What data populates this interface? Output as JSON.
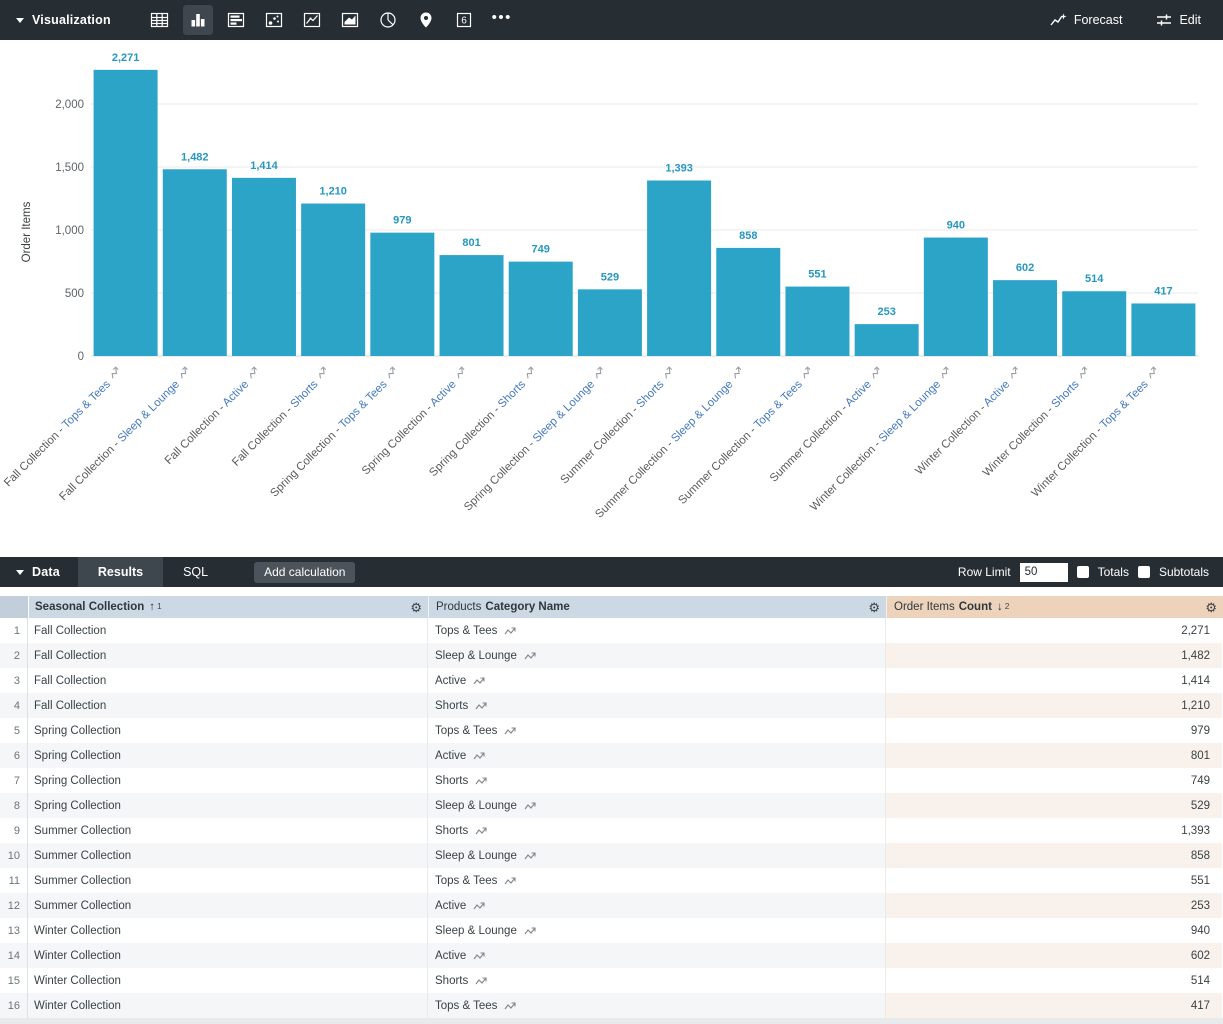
{
  "toolbar": {
    "title": "Visualization",
    "forecast_label": "Forecast",
    "edit_label": "Edit",
    "single_value_glyph": "6",
    "viz_icons": [
      {
        "name": "table-icon",
        "selected": false
      },
      {
        "name": "column-chart-icon",
        "selected": true
      },
      {
        "name": "bar-chart-icon",
        "selected": false
      },
      {
        "name": "scatter-chart-icon",
        "selected": false
      },
      {
        "name": "line-chart-icon",
        "selected": false
      },
      {
        "name": "area-chart-icon",
        "selected": false
      },
      {
        "name": "pie-chart-icon",
        "selected": false
      },
      {
        "name": "map-pin-icon",
        "selected": false
      },
      {
        "name": "single-value-icon",
        "selected": false
      },
      {
        "name": "more-options-icon",
        "selected": false
      }
    ]
  },
  "chart_data": {
    "type": "bar",
    "ylabel": "Order Items",
    "grid": "horizontal",
    "legend": "off",
    "bar_color": "#2ca4c8",
    "value_label_color": "#2697c0",
    "axis_text_color": "#5f6368",
    "category_prefix_color": "#5b5b5b",
    "category_name_color": "#4478be",
    "ylim": [
      0,
      2400
    ],
    "yticks": [
      {
        "value": 0,
        "label": "0"
      },
      {
        "value": 500,
        "label": "500"
      },
      {
        "value": 1000,
        "label": "1,000"
      },
      {
        "value": 1500,
        "label": "1,500"
      },
      {
        "value": 2000,
        "label": "2,000"
      }
    ],
    "categories": [
      {
        "prefix": "Fall Collection - ",
        "name": "Tops & Tees"
      },
      {
        "prefix": "Fall Collection - ",
        "name": "Sleep & Lounge"
      },
      {
        "prefix": "Fall Collection - ",
        "name": "Active"
      },
      {
        "prefix": "Fall Collection - ",
        "name": "Shorts"
      },
      {
        "prefix": "Spring Collection - ",
        "name": "Tops & Tees"
      },
      {
        "prefix": "Spring Collection - ",
        "name": "Active"
      },
      {
        "prefix": "Spring Collection - ",
        "name": "Shorts"
      },
      {
        "prefix": "Spring Collection - ",
        "name": "Sleep & Lounge"
      },
      {
        "prefix": "Summer Collection - ",
        "name": "Shorts"
      },
      {
        "prefix": "Summer Collection - ",
        "name": "Sleep & Lounge"
      },
      {
        "prefix": "Summer Collection - ",
        "name": "Tops & Tees"
      },
      {
        "prefix": "Summer Collection - ",
        "name": "Active"
      },
      {
        "prefix": "Winter Collection - ",
        "name": "Sleep & Lounge"
      },
      {
        "prefix": "Winter Collection - ",
        "name": "Active"
      },
      {
        "prefix": "Winter Collection - ",
        "name": "Shorts"
      },
      {
        "prefix": "Winter Collection - ",
        "name": "Tops & Tees"
      }
    ],
    "values": [
      2271,
      1482,
      1414,
      1210,
      979,
      801,
      749,
      529,
      1393,
      858,
      551,
      253,
      940,
      602,
      514,
      417
    ],
    "value_labels": [
      "2,271",
      "1,482",
      "1,414",
      "1,210",
      "979",
      "801",
      "749",
      "529",
      "1,393",
      "858",
      "551",
      "253",
      "940",
      "602",
      "514",
      "417"
    ]
  },
  "data_bar": {
    "title": "Data",
    "tabs": [
      {
        "label": "Results",
        "active": true
      },
      {
        "label": "SQL",
        "active": false
      }
    ],
    "add_calculation_label": "Add calculation",
    "row_limit_label": "Row Limit",
    "row_limit_value": "50",
    "totals_label": "Totals",
    "subtotals_label": "Subtotals"
  },
  "table": {
    "headers": {
      "c1": {
        "title": "Seasonal Collection",
        "sort_arrow": "↑",
        "sort_index": "1"
      },
      "c2": {
        "prefix": "Products",
        "title": "Category Name"
      },
      "c3": {
        "prefix": "Order Items",
        "title": "Count",
        "sort_arrow": "↓",
        "sort_index": "2"
      }
    },
    "rows": [
      {
        "n": "1",
        "collection": "Fall Collection",
        "category": "Tops & Tees",
        "count": "2,271"
      },
      {
        "n": "2",
        "collection": "Fall Collection",
        "category": "Sleep & Lounge",
        "count": "1,482"
      },
      {
        "n": "3",
        "collection": "Fall Collection",
        "category": "Active",
        "count": "1,414"
      },
      {
        "n": "4",
        "collection": "Fall Collection",
        "category": "Shorts",
        "count": "1,210"
      },
      {
        "n": "5",
        "collection": "Spring Collection",
        "category": "Tops & Tees",
        "count": "979"
      },
      {
        "n": "6",
        "collection": "Spring Collection",
        "category": "Active",
        "count": "801"
      },
      {
        "n": "7",
        "collection": "Spring Collection",
        "category": "Shorts",
        "count": "749"
      },
      {
        "n": "8",
        "collection": "Spring Collection",
        "category": "Sleep & Lounge",
        "count": "529"
      },
      {
        "n": "9",
        "collection": "Summer Collection",
        "category": "Shorts",
        "count": "1,393"
      },
      {
        "n": "10",
        "collection": "Summer Collection",
        "category": "Sleep & Lounge",
        "count": "858"
      },
      {
        "n": "11",
        "collection": "Summer Collection",
        "category": "Tops & Tees",
        "count": "551"
      },
      {
        "n": "12",
        "collection": "Summer Collection",
        "category": "Active",
        "count": "253"
      },
      {
        "n": "13",
        "collection": "Winter Collection",
        "category": "Sleep & Lounge",
        "count": "940"
      },
      {
        "n": "14",
        "collection": "Winter Collection",
        "category": "Active",
        "count": "602"
      },
      {
        "n": "15",
        "collection": "Winter Collection",
        "category": "Shorts",
        "count": "514"
      },
      {
        "n": "16",
        "collection": "Winter Collection",
        "category": "Tops & Tees",
        "count": "417"
      }
    ]
  }
}
